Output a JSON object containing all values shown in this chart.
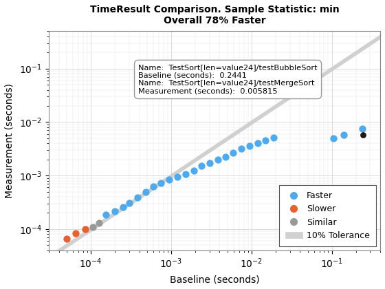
{
  "title_line1": "TimeResult Comparison. Sample Statistic: min",
  "title_line2": "Overall 78% Faster",
  "xlabel": "Baseline (seconds)",
  "ylabel": "Measurement (seconds)",
  "xlim": [
    3e-05,
    0.4
  ],
  "ylim": [
    4e-05,
    0.5
  ],
  "faster_points": [
    [
      0.000155,
      0.000185
    ],
    [
      0.0002,
      0.000215
    ],
    [
      0.00025,
      0.00026
    ],
    [
      0.0003,
      0.00031
    ],
    [
      0.00038,
      0.00039
    ],
    [
      0.00048,
      0.0005
    ],
    [
      0.0006,
      0.00062
    ],
    [
      0.00075,
      0.00073
    ],
    [
      0.00095,
      0.00083
    ],
    [
      0.0012,
      0.00095
    ],
    [
      0.0015,
      0.00105
    ],
    [
      0.0019,
      0.00125
    ],
    [
      0.0024,
      0.0015
    ],
    [
      0.003,
      0.0017
    ],
    [
      0.0038,
      0.002
    ],
    [
      0.0047,
      0.00225
    ],
    [
      0.0059,
      0.0027
    ],
    [
      0.0075,
      0.0032
    ],
    [
      0.0094,
      0.0036
    ],
    [
      0.012,
      0.004
    ],
    [
      0.015,
      0.0046
    ],
    [
      0.019,
      0.0051
    ],
    [
      0.105,
      0.0049
    ],
    [
      0.14,
      0.0057
    ],
    [
      0.24,
      0.0075
    ]
  ],
  "slower_points": [
    [
      5e-05,
      6.5e-05
    ],
    [
      6.5e-05,
      8.3e-05
    ],
    [
      8.5e-05,
      0.0001
    ]
  ],
  "similar_points": [
    [
      0.000105,
      0.00011
    ],
    [
      0.000125,
      0.00013
    ]
  ],
  "highlighted_point": [
    0.2441,
    0.005815
  ],
  "faster_color": "#4DAAEE",
  "slower_color": "#E8602C",
  "similar_color": "#999999",
  "tolerance_color": "#D0D0D0",
  "highlight_color": "#1A1A1A",
  "datatip_text": "Name:  TestSort[len=value24]/testBubbleSort\nBaseline (seconds):  0.2441\nName:  TestSort[len=value24]/testMergeSort\nMeasurement (seconds):  0.005815",
  "background_color": "#FFFFFF"
}
